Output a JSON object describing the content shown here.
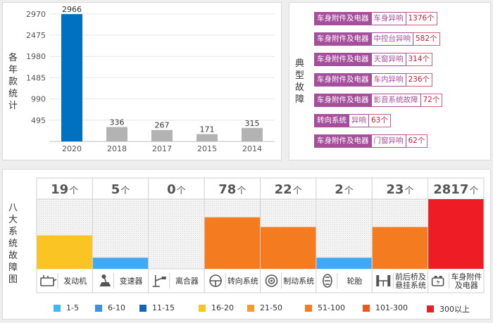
{
  "chart1": {
    "ylabel": "各年款统计",
    "chart_data": {
      "type": "bar",
      "categories": [
        "2020",
        "2018",
        "2017",
        "2015",
        "2014"
      ],
      "values": [
        2966,
        336,
        267,
        171,
        315
      ],
      "yticks": [
        495,
        990,
        1485,
        1980,
        2475,
        2970
      ],
      "ylim": [
        0,
        3000
      ],
      "highlight_color": "#0070c0",
      "default_color": "#b3b3b3",
      "grid": true
    }
  },
  "typical_faults": {
    "title": "典型故障",
    "rows": [
      {
        "category": "车身附件及电器",
        "fault": "车身异响",
        "count": "1376个"
      },
      {
        "category": "车身附件及电器",
        "fault": "中控台异响",
        "count": "582个"
      },
      {
        "category": "车身附件及电器",
        "fault": "天窗异响",
        "count": "314个"
      },
      {
        "category": "车身附件及电器",
        "fault": "车内异响",
        "count": "236个"
      },
      {
        "category": "车身附件及电器",
        "fault": "影音系统故障",
        "count": "72个"
      },
      {
        "category": "转向系统",
        "fault": "异响",
        "count": "63个"
      },
      {
        "category": "车身附件及电器",
        "fault": "门窗异响",
        "count": "62个"
      }
    ]
  },
  "systems": {
    "title": "八大系统故障图",
    "unit": "个",
    "chart_data": {
      "type": "bar",
      "categories": [
        "发动机",
        "变速器",
        "离合器",
        "转向系统",
        "制动系统",
        "轮胎",
        "前后桥及悬挂系统",
        "车身附件及电器"
      ],
      "category_lines": [
        [
          "发动机"
        ],
        [
          "变速器"
        ],
        [
          "离合器"
        ],
        [
          "转向系统"
        ],
        [
          "制动系统"
        ],
        [
          "轮胎"
        ],
        [
          "前后桥及",
          "悬挂系统"
        ],
        [
          "车身附件",
          "及电器"
        ]
      ],
      "values": [
        19,
        5,
        0,
        78,
        22,
        2,
        23,
        2817
      ],
      "fill_levels": [
        0.48,
        0.16,
        0,
        0.74,
        0.6,
        0.16,
        0.6,
        1.0
      ],
      "colors": [
        "#f9c424",
        "#3fa9f5",
        "#3fa9f5",
        "#f47b20",
        "#f47b20",
        "#3fa9f5",
        "#f47b20",
        "#ee1c25"
      ],
      "icons": [
        "engine-icon",
        "gearshift-icon",
        "clutch-icon",
        "steering-wheel-icon",
        "brake-disc-icon",
        "tire-icon",
        "suspension-icon",
        "car-electrical-icon"
      ]
    }
  },
  "legend": [
    {
      "label": "1-5",
      "color": "#3fb8f5"
    },
    {
      "label": "6-10",
      "color": "#3e8fe6"
    },
    {
      "label": "11-15",
      "color": "#1565b5"
    },
    {
      "label": "16-20",
      "color": "#f9c424"
    },
    {
      "label": "21-50",
      "color": "#f89b2c"
    },
    {
      "label": "51-100",
      "color": "#f47b20"
    },
    {
      "label": "101-300",
      "color": "#f0561e"
    },
    {
      "label": "300以上",
      "color": "#ee1c25"
    }
  ]
}
